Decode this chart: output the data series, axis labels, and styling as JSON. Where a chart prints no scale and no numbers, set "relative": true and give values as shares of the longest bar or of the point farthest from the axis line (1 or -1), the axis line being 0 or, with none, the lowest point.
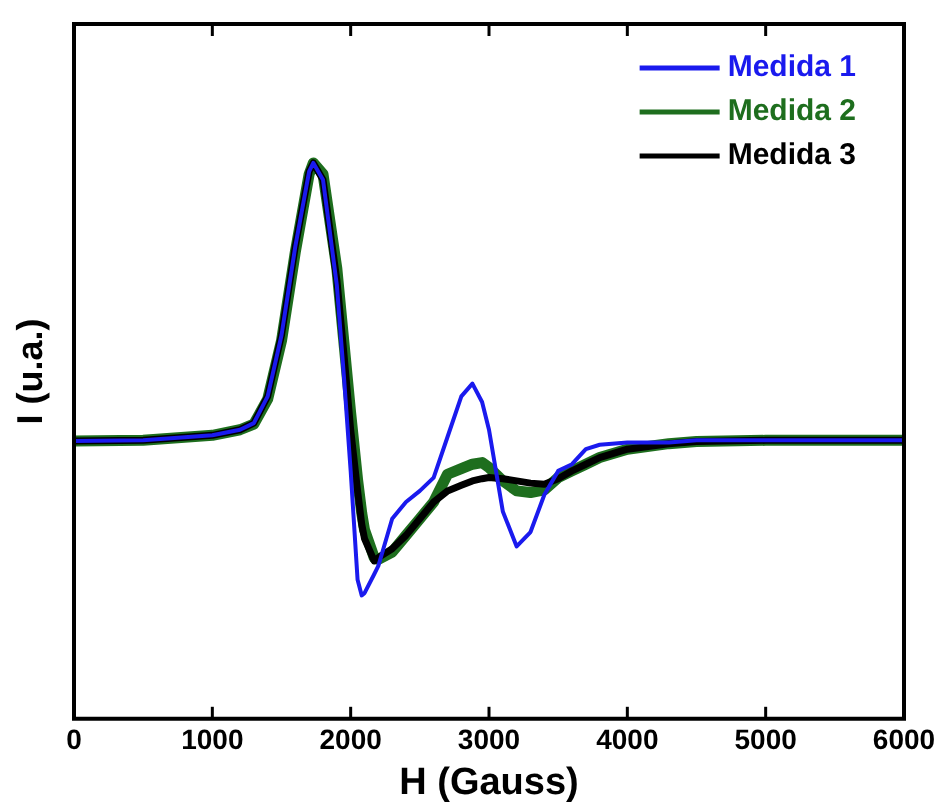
{
  "chart_data": {
    "type": "line",
    "xlabel": "H (Gauss)",
    "ylabel": "I (u.a.)",
    "relative": true,
    "x": [
      0,
      500,
      1000,
      1200,
      1300,
      1400,
      1500,
      1600,
      1700,
      1730,
      1800,
      1900,
      1950,
      2000,
      2050,
      2080,
      2100,
      2170,
      2200,
      2300,
      2400,
      2500,
      2600,
      2700,
      2800,
      2880,
      2950,
      3000,
      3100,
      3200,
      3300,
      3400,
      3500,
      3600,
      3700,
      3800,
      4000,
      4300,
      4500,
      5000,
      6000
    ],
    "xlim": [
      0,
      6000
    ],
    "xticks": [
      0,
      1000,
      2000,
      3000,
      4000,
      5000,
      6000
    ],
    "grid": false,
    "legend": "top right",
    "marker": "none",
    "line_style": "solid",
    "series": [
      {
        "name": "Medida 1",
        "color": "#1a1aee",
        "values": [
          0.5,
          0.501,
          0.51,
          0.52,
          0.532,
          0.58,
          0.69,
          0.85,
          0.985,
          1.0,
          0.97,
          0.78,
          0.62,
          0.446,
          0.25,
          0.222,
          0.226,
          0.26,
          0.275,
          0.36,
          0.39,
          0.41,
          0.434,
          0.507,
          0.58,
          0.603,
          0.57,
          0.52,
          0.373,
          0.31,
          0.336,
          0.403,
          0.446,
          0.458,
          0.485,
          0.493,
          0.497,
          0.497,
          0.501,
          0.501,
          0.501
        ]
      },
      {
        "name": "Medida 2",
        "color": "#1e6e1e",
        "values": [
          0.5,
          0.501,
          0.51,
          0.52,
          0.53,
          0.575,
          0.68,
          0.84,
          0.98,
          1.0,
          0.98,
          0.81,
          0.68,
          0.55,
          0.43,
          0.37,
          0.34,
          0.29,
          0.287,
          0.3,
          0.33,
          0.36,
          0.39,
          0.44,
          0.45,
          0.458,
          0.461,
          0.452,
          0.428,
          0.41,
          0.407,
          0.412,
          0.434,
          0.446,
          0.458,
          0.47,
          0.485,
          0.495,
          0.499,
          0.501,
          0.501
        ]
      },
      {
        "name": "Medida 3",
        "color": "#000000",
        "values": [
          0.5,
          0.501,
          0.51,
          0.52,
          0.532,
          0.58,
          0.69,
          0.85,
          0.985,
          1.0,
          0.97,
          0.79,
          0.66,
          0.52,
          0.41,
          0.35,
          0.324,
          0.284,
          0.29,
          0.306,
          0.33,
          0.36,
          0.39,
          0.41,
          0.42,
          0.428,
          0.432,
          0.434,
          0.432,
          0.428,
          0.424,
          0.422,
          0.432,
          0.446,
          0.458,
          0.47,
          0.485,
          0.495,
          0.499,
          0.501,
          0.501
        ]
      }
    ]
  }
}
